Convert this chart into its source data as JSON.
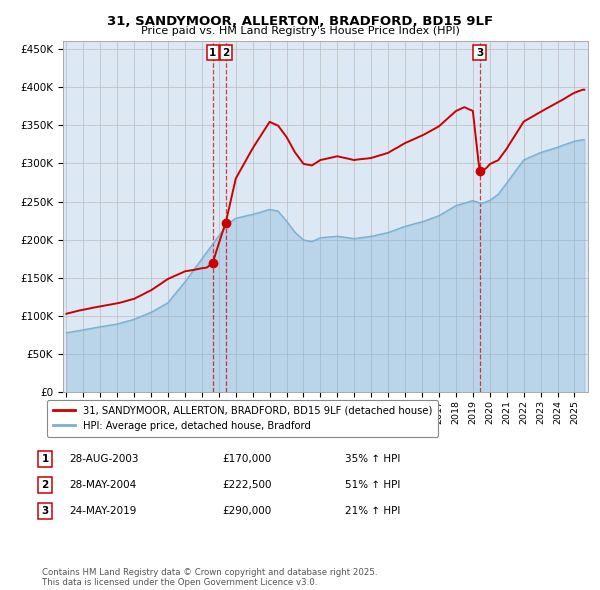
{
  "title": "31, SANDYMOOR, ALLERTON, BRADFORD, BD15 9LF",
  "subtitle": "Price paid vs. HM Land Registry's House Price Index (HPI)",
  "hpi_label": "HPI: Average price, detached house, Bradford",
  "property_label": "31, SANDYMOOR, ALLERTON, BRADFORD, BD15 9LF (detached house)",
  "red_color": "#cc0000",
  "blue_color": "#7bafd4",
  "bg_color": "#dce9f5",
  "grid_color": "#bbbbbb",
  "transactions": [
    {
      "id": 1,
      "date": "28-AUG-2003",
      "price": 170000,
      "hpi_pct": "35%",
      "date_num": 2003.65
    },
    {
      "id": 2,
      "date": "28-MAY-2004",
      "price": 222500,
      "hpi_pct": "51%",
      "date_num": 2004.41
    },
    {
      "id": 3,
      "date": "24-MAY-2019",
      "price": 290000,
      "hpi_pct": "21%",
      "date_num": 2019.4
    }
  ],
  "ylim": [
    0,
    460000
  ],
  "xlim_start": 1994.8,
  "xlim_end": 2025.8,
  "footer": "Contains HM Land Registry data © Crown copyright and database right 2025.\nThis data is licensed under the Open Government Licence v3.0."
}
